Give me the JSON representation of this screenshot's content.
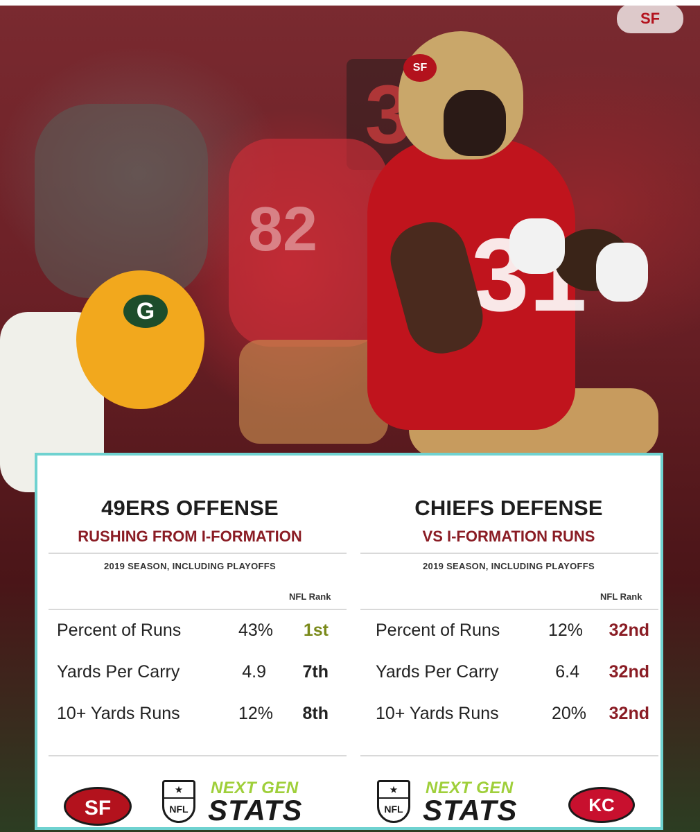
{
  "watermark": "SF",
  "photo": {
    "sf_jersey_number": "31",
    "background_number": "82",
    "helmet_logo": "SF",
    "gb_logo": "G"
  },
  "left": {
    "title": "49ERS OFFENSE",
    "subtitle": "RUSHING FROM I-FORMATION",
    "note": "2019 SEASON, INCLUDING PLAYOFFS",
    "rank_header": "NFL Rank",
    "rows": [
      {
        "label": "Percent of Runs",
        "value": "43%",
        "rank": "1st"
      },
      {
        "label": "Yards Per Carry",
        "value": "4.9",
        "rank": "7th"
      },
      {
        "label": "10+ Yards Runs",
        "value": "12%",
        "rank": "8th"
      }
    ],
    "team_logo_text": "SF",
    "nfl_text": "NFL",
    "ngs_next": "NEXT GEN",
    "ngs_stats": "STATS"
  },
  "right": {
    "title": "CHIEFS DEFENSE",
    "subtitle": "VS I-FORMATION RUNS",
    "note": "2019 SEASON, INCLUDING PLAYOFFS",
    "rank_header": "NFL Rank",
    "rows": [
      {
        "label": "Percent of Runs",
        "value": "12%",
        "rank": "32nd"
      },
      {
        "label": "Yards Per Carry",
        "value": "6.4",
        "rank": "32nd"
      },
      {
        "label": "10+ Yards Runs",
        "value": "20%",
        "rank": "32nd"
      }
    ],
    "team_logo_text": "KC",
    "nfl_text": "NFL",
    "ngs_next": "NEXT GEN",
    "ngs_stats": "STATS"
  },
  "colors": {
    "accent_red": "#8a1c24",
    "rank_green": "#7a8a1a",
    "border_teal": "#6fd2d0"
  }
}
